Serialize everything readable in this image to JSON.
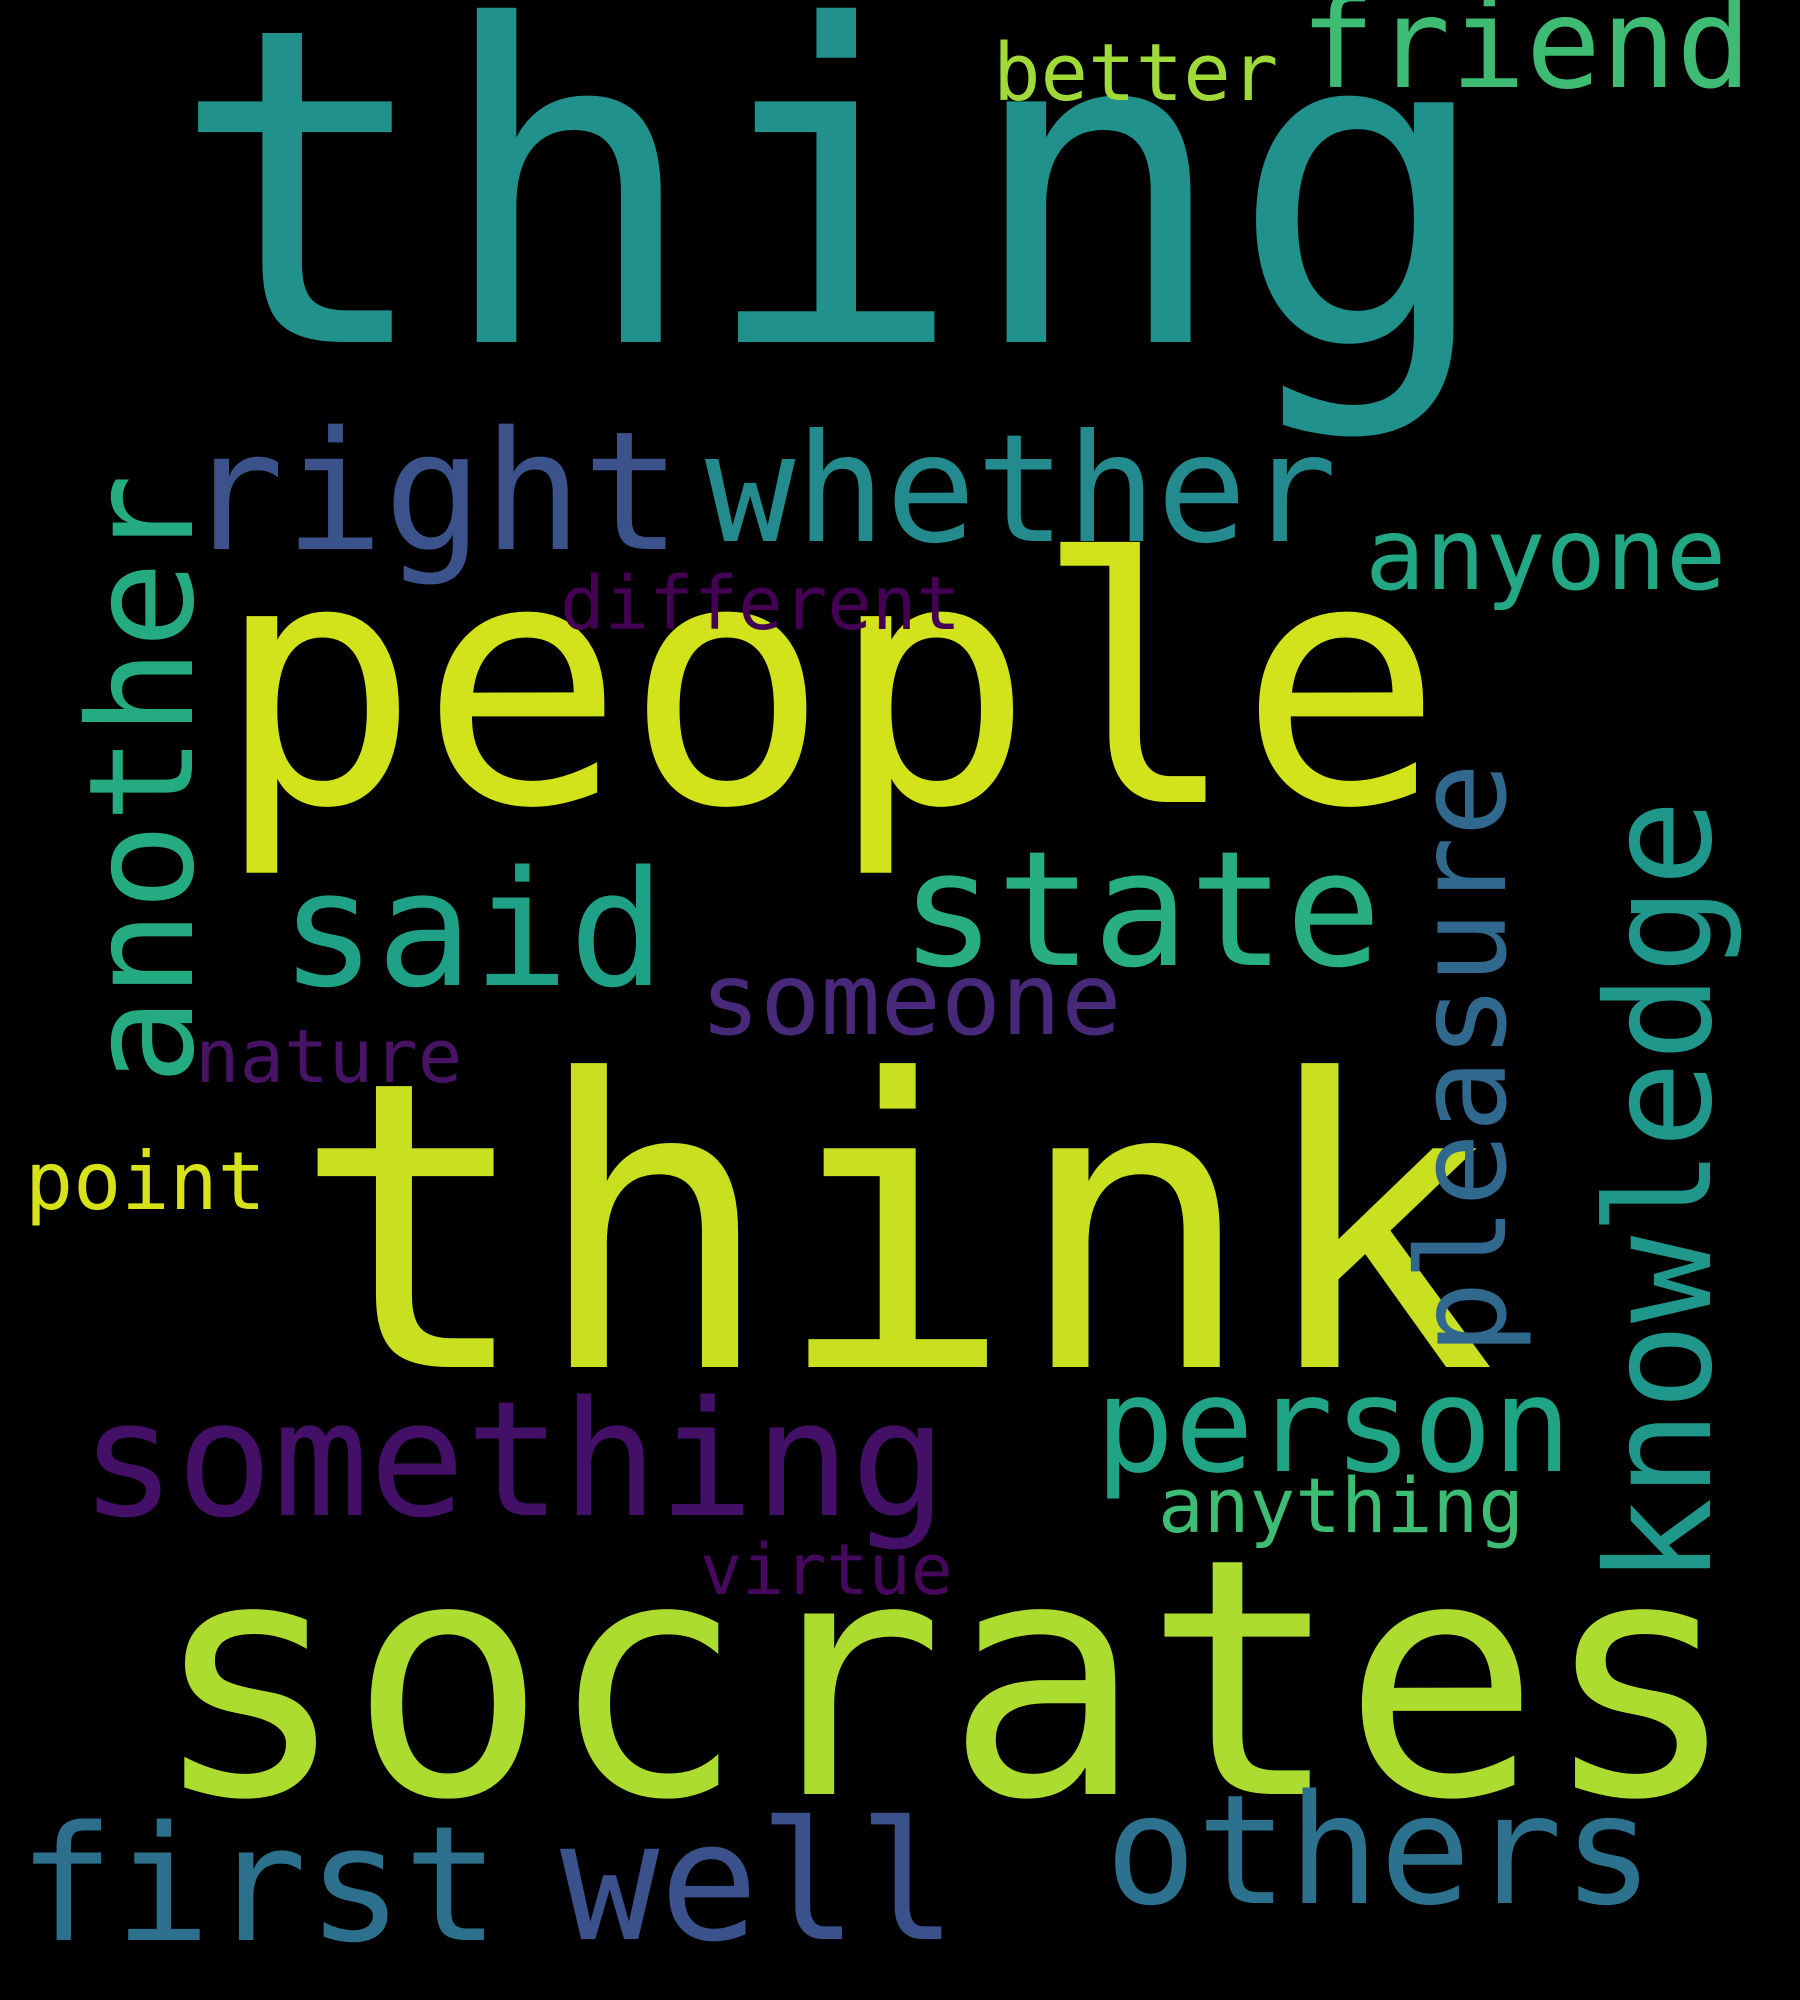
{
  "background_color": "#000000",
  "words": [
    {
      "id": "thing",
      "text": "thing",
      "color": "#21918c"
    },
    {
      "id": "people",
      "text": "people",
      "color": "#d2e21b"
    },
    {
      "id": "think",
      "text": "think",
      "color": "#c8e020"
    },
    {
      "id": "socrates",
      "text": "socrates",
      "color": "#addc30"
    },
    {
      "id": "something",
      "text": "something",
      "color": "#440f66"
    },
    {
      "id": "right",
      "text": "right",
      "color": "#3b528b"
    },
    {
      "id": "whether",
      "text": "whether",
      "color": "#238a8d"
    },
    {
      "id": "said",
      "text": "said",
      "color": "#1fa187"
    },
    {
      "id": "state",
      "text": "state",
      "color": "#28ae80"
    },
    {
      "id": "another",
      "text": "another",
      "color": "#25ab82"
    },
    {
      "id": "pleasure",
      "text": "pleasure",
      "color": "#31688e"
    },
    {
      "id": "knowledge",
      "text": "knowledge",
      "color": "#1f978b"
    },
    {
      "id": "person",
      "text": "person",
      "color": "#20a486"
    },
    {
      "id": "others",
      "text": "others",
      "color": "#2c728e"
    },
    {
      "id": "first",
      "text": "first",
      "color": "#2d708e"
    },
    {
      "id": "well",
      "text": "well",
      "color": "#3b518b"
    },
    {
      "id": "friend",
      "text": "friend",
      "color": "#3fbc73"
    },
    {
      "id": "anyone",
      "text": "anyone",
      "color": "#22a884"
    },
    {
      "id": "someone",
      "text": "someone",
      "color": "#482878"
    },
    {
      "id": "better",
      "text": "better",
      "color": "#a0da39"
    },
    {
      "id": "different",
      "text": "different",
      "color": "#440154"
    },
    {
      "id": "nature",
      "text": "nature",
      "color": "#471365"
    },
    {
      "id": "point",
      "text": "point",
      "color": "#d8e219"
    },
    {
      "id": "anything",
      "text": "anything",
      "color": "#3dbc74"
    },
    {
      "id": "virtue",
      "text": "virtue",
      "color": "#46085c"
    }
  ]
}
